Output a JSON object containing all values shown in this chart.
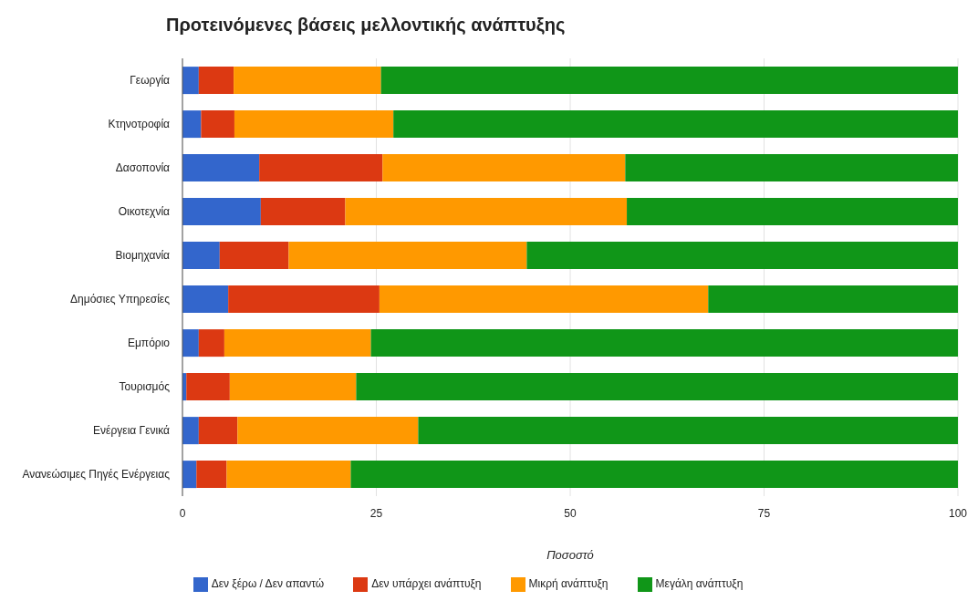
{
  "chart_data": {
    "type": "bar",
    "title": "Προτεινόμενες βάσεις μελλοντικής ανάπτυξης",
    "xlabel": "Ποσοστό",
    "orientation": "horizontal",
    "stacked": true,
    "categories": [
      "Γεωργία",
      "Κτηνοτροφία",
      "Δασοπονία",
      "Οικοτεχνία",
      "Βιομηχανία",
      "Δημόσιες Υπηρεσίες",
      "Εμπόριο",
      "Τουρισμός",
      "Ενέργεια Γενικά",
      "Ανανεώσιμες Πηγές Ενέργειας"
    ],
    "series": [
      {
        "name": "Δεν ξέρω / Δεν απαντώ",
        "color": "#3366cc",
        "values": [
          2.1,
          2.4,
          9.9,
          10.1,
          4.8,
          5.9,
          2.1,
          0.5,
          2.1,
          1.8
        ]
      },
      {
        "name": "Δεν υπάρχει ανάπτυξη",
        "color": "#dc3912",
        "values": [
          4.5,
          4.3,
          15.9,
          10.9,
          8.9,
          19.5,
          3.3,
          5.6,
          5.0,
          3.9
        ]
      },
      {
        "name": "Μικρή ανάπτυξη",
        "color": "#ff9900",
        "values": [
          19.0,
          20.5,
          31.3,
          36.3,
          30.7,
          42.4,
          18.9,
          16.3,
          23.3,
          16.0
        ]
      },
      {
        "name": "Μεγάλη ανάπτυξη",
        "color": "#109618",
        "values": [
          74.4,
          72.8,
          42.9,
          42.7,
          55.6,
          32.2,
          75.7,
          77.6,
          69.6,
          78.3
        ]
      }
    ],
    "xlim": [
      0,
      100
    ],
    "xticks": [
      0,
      25,
      50,
      75,
      100
    ],
    "grid": "x",
    "legend": "bottom"
  }
}
